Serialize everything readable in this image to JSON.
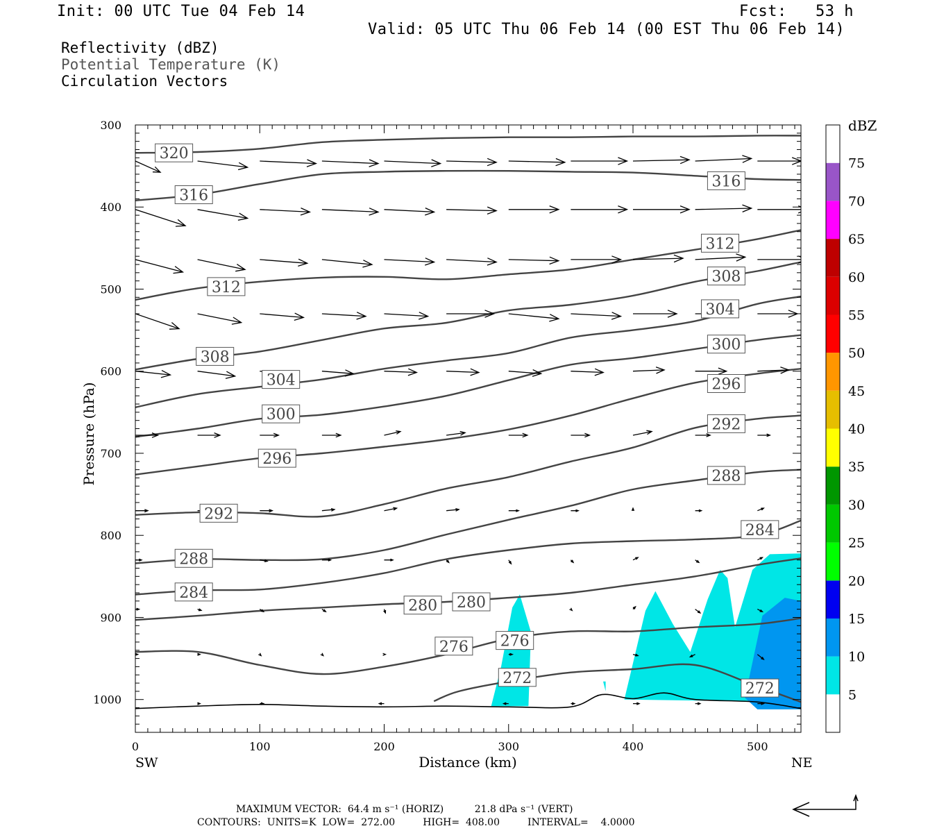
{
  "header": {
    "init": "Init: 00 UTC Tue 04 Feb 14",
    "fcst": "Fcst:   53 h",
    "valid": "Valid: 05 UTC Thu 06 Feb 14 (00 EST Thu 06 Feb 14)"
  },
  "legend": {
    "reflectivity": "Reflectivity (dBZ)",
    "theta": "Potential Temperature (K)",
    "vectors": "Circulation Vectors"
  },
  "footer": {
    "max_vector": "MAXIMUM VECTOR:  64.4 m s⁻¹ (HORIZ)          21.8 dPa s⁻¹ (VERT)",
    "contours": "CONTOURS:  UNITS=K  LOW=  272.00         HIGH=  408.00         INTERVAL=    4.0000"
  },
  "colors": {
    "contour": "#444444",
    "dbz5": "#00e6e6",
    "dbz10": "#0096f0"
  },
  "chart_data": {
    "type": "cross-section",
    "xlabel": "Distance (km)",
    "ylabel": "Pressure (hPa)",
    "x_end_labels": [
      "SW",
      "NE"
    ],
    "xlim": [
      0,
      535
    ],
    "ylim": [
      1040,
      300
    ],
    "x_ticks": [
      0,
      100,
      200,
      300,
      400,
      500
    ],
    "y_ticks": [
      300,
      400,
      500,
      600,
      700,
      800,
      900,
      1000
    ],
    "colorbar": {
      "label": "dBZ",
      "ticks": [
        5,
        10,
        15,
        20,
        25,
        30,
        35,
        40,
        45,
        50,
        55,
        60,
        65,
        70,
        75
      ],
      "colors": [
        "#ffffff",
        "#00e6e6",
        "#0096f0",
        "#0000f0",
        "#00ff00",
        "#00c800",
        "#009600",
        "#ffff00",
        "#e6be00",
        "#ff9600",
        "#ff0000",
        "#dc0000",
        "#be0000",
        "#ff00ff",
        "#9955c8",
        "#ffffff"
      ]
    },
    "contour_labels": [
      {
        "value": "320",
        "x": 31,
        "p": 334
      },
      {
        "value": "316",
        "x": 47,
        "p": 385
      },
      {
        "value": "316",
        "x": 475,
        "p": 368
      },
      {
        "value": "312",
        "x": 73,
        "p": 497
      },
      {
        "value": "312",
        "x": 470,
        "p": 444
      },
      {
        "value": "308",
        "x": 475,
        "p": 484
      },
      {
        "value": "308",
        "x": 64,
        "p": 582
      },
      {
        "value": "304",
        "x": 470,
        "p": 524
      },
      {
        "value": "304",
        "x": 117,
        "p": 610
      },
      {
        "value": "300",
        "x": 475,
        "p": 567
      },
      {
        "value": "300",
        "x": 117,
        "p": 652
      },
      {
        "value": "296",
        "x": 475,
        "p": 615
      },
      {
        "value": "296",
        "x": 114,
        "p": 706
      },
      {
        "value": "292",
        "x": 475,
        "p": 664
      },
      {
        "value": "292",
        "x": 67,
        "p": 773
      },
      {
        "value": "288",
        "x": 475,
        "p": 727
      },
      {
        "value": "288",
        "x": 47,
        "p": 828
      },
      {
        "value": "284",
        "x": 502,
        "p": 793
      },
      {
        "value": "284",
        "x": 47,
        "p": 869
      },
      {
        "value": "280",
        "x": 231,
        "p": 885
      },
      {
        "value": "280",
        "x": 270,
        "p": 881
      },
      {
        "value": "276",
        "x": 256,
        "p": 935
      },
      {
        "value": "276",
        "x": 305,
        "p": 928
      },
      {
        "value": "272",
        "x": 307,
        "p": 973
      },
      {
        "value": "272",
        "x": 502,
        "p": 986
      }
    ],
    "contours": [
      {
        "theta": 320,
        "x": [
          0,
          50,
          100,
          150,
          200,
          250,
          300,
          350,
          400,
          450,
          500,
          535
        ],
        "p": [
          334,
          333,
          329,
          321,
          318,
          316,
          315,
          315,
          314,
          314,
          313,
          313
        ]
      },
      {
        "theta": 316,
        "x": [
          0,
          50,
          100,
          150,
          200,
          250,
          300,
          350,
          400,
          450,
          500,
          535
        ],
        "p": [
          392,
          385,
          372,
          360,
          357,
          356,
          356,
          357,
          358,
          362,
          366,
          367
        ]
      },
      {
        "theta": 312,
        "x": [
          0,
          50,
          100,
          150,
          200,
          250,
          300,
          350,
          400,
          450,
          500,
          535
        ],
        "p": [
          513,
          499,
          491,
          486,
          485,
          488,
          482,
          476,
          464,
          452,
          439,
          428
        ]
      },
      {
        "theta": 308,
        "x": [
          0,
          50,
          100,
          150,
          200,
          250,
          300,
          350,
          400,
          450,
          500,
          535
        ],
        "p": [
          598,
          585,
          576,
          562,
          548,
          541,
          526,
          519,
          508,
          491,
          478,
          467
        ]
      },
      {
        "theta": 304,
        "x": [
          0,
          50,
          100,
          150,
          200,
          250,
          300,
          350,
          400,
          450,
          500,
          535
        ],
        "p": [
          644,
          628,
          619,
          610,
          597,
          587,
          578,
          559,
          550,
          539,
          518,
          509
        ]
      },
      {
        "theta": 300,
        "x": [
          0,
          50,
          100,
          150,
          200,
          250,
          300,
          350,
          400,
          450,
          500,
          535
        ],
        "p": [
          680,
          670,
          658,
          653,
          643,
          630,
          611,
          592,
          584,
          573,
          562,
          556
        ]
      },
      {
        "theta": 296,
        "x": [
          0,
          50,
          100,
          150,
          200,
          250,
          300,
          350,
          400,
          450,
          500,
          535
        ],
        "p": [
          726,
          716,
          706,
          700,
          692,
          683,
          671,
          654,
          633,
          614,
          603,
          597
        ]
      },
      {
        "theta": 292,
        "x": [
          0,
          50,
          100,
          150,
          200,
          250,
          300,
          350,
          400,
          450,
          500,
          535
        ],
        "p": [
          775,
          772,
          773,
          777,
          762,
          743,
          729,
          710,
          693,
          669,
          658,
          654
        ]
      },
      {
        "theta": 288,
        "x": [
          0,
          50,
          100,
          150,
          200,
          250,
          300,
          350,
          400,
          450,
          500,
          535
        ],
        "p": [
          834,
          829,
          830,
          829,
          818,
          799,
          781,
          764,
          744,
          733,
          723,
          720
        ]
      },
      {
        "theta": 284,
        "x": [
          0,
          50,
          100,
          150,
          200,
          250,
          300,
          350,
          400,
          450,
          500,
          535
        ],
        "p": [
          872,
          867,
          866,
          858,
          846,
          829,
          818,
          810,
          807,
          805,
          800,
          782
        ]
      },
      {
        "theta": 280,
        "x": [
          0,
          50,
          100,
          150,
          200,
          250,
          300,
          350,
          400,
          450,
          500,
          535
        ],
        "p": [
          903,
          898,
          892,
          888,
          884,
          881,
          876,
          870,
          860,
          850,
          836,
          828
        ]
      },
      {
        "theta": 276,
        "x": [
          0,
          50,
          100,
          150,
          200,
          250,
          300,
          350,
          400,
          450,
          500,
          535
        ],
        "p": [
          942,
          942,
          958,
          969,
          960,
          945,
          926,
          917,
          917,
          912,
          908,
          901
        ]
      },
      {
        "theta": 272,
        "x": [
          240,
          260,
          300,
          350,
          400,
          450,
          500,
          535
        ],
        "p": [
          1002,
          990,
          978,
          967,
          963,
          958,
          984,
          1003
        ]
      },
      {
        "theta": "surface",
        "x": [
          0,
          50,
          100,
          150,
          200,
          250,
          300,
          350,
          375,
          400,
          425,
          450,
          500,
          535
        ],
        "p": [
          1011,
          1008,
          1006,
          1008,
          1009,
          1008,
          1009,
          1009,
          994,
          999,
          992,
          1000,
          1003,
          1011
        ]
      }
    ],
    "dbz_areas": [
      {
        "dbz": 5,
        "x": [
          286,
          294,
          303,
          309,
          318,
          316,
          286
        ],
        "p": [
          1008,
          960,
          888,
          872,
          918,
          1008,
          1008
        ]
      },
      {
        "dbz": 5,
        "x": [
          376,
          378,
          378,
          376
        ],
        "p": [
          978,
          978,
          990,
          978
        ]
      },
      {
        "dbz": 5,
        "x": [
          393,
          410,
          418,
          432,
          446,
          460,
          470,
          476,
          482,
          496,
          510,
          535,
          535,
          393
        ],
        "p": [
          1000,
          892,
          868,
          908,
          942,
          878,
          842,
          852,
          912,
          842,
          823,
          822,
          1003,
          1000
        ]
      },
      {
        "dbz": 10,
        "x": [
          490,
          504,
          522,
          535,
          535,
          500,
          490
        ],
        "p": [
          998,
          898,
          876,
          880,
          1012,
          1012,
          998
        ]
      }
    ],
    "vector_rows": [
      {
        "p": 344,
        "x": [
          0,
          50,
          100,
          150,
          200,
          250,
          300,
          350,
          400,
          450,
          500
        ],
        "u": [
          20,
          40,
          45,
          45,
          45,
          40,
          45,
          45,
          45,
          45,
          35
        ],
        "v": [
          9,
          5,
          2,
          2,
          2,
          1,
          1,
          0,
          -1,
          -2,
          0
        ]
      },
      {
        "p": 403,
        "x": [
          0,
          50,
          100,
          150,
          200,
          250,
          300,
          350,
          400,
          450,
          500
        ],
        "u": [
          40,
          40,
          40,
          45,
          40,
          40,
          40,
          45,
          45,
          45,
          40
        ],
        "v": [
          13,
          7,
          2,
          2,
          2,
          1,
          0,
          0,
          0,
          -1,
          0
        ]
      },
      {
        "p": 464,
        "x": [
          0,
          50,
          100,
          150,
          200,
          250,
          300,
          350,
          400,
          450,
          500
        ],
        "u": [
          38,
          38,
          38,
          40,
          40,
          40,
          40,
          40,
          40,
          40,
          40
        ],
        "v": [
          10,
          8,
          3,
          4,
          2,
          2,
          1,
          0,
          -1,
          -2,
          0
        ]
      },
      {
        "p": 530,
        "x": [
          0,
          50,
          100,
          150,
          200,
          250,
          300,
          350,
          400,
          450,
          500
        ],
        "u": [
          35,
          35,
          35,
          35,
          35,
          38,
          40,
          40,
          35,
          30,
          32
        ],
        "v": [
          12,
          7,
          3,
          2,
          2,
          0,
          4,
          2,
          0,
          0,
          0
        ]
      },
      {
        "p": 600,
        "x": [
          0,
          50,
          100,
          150,
          200,
          250,
          300,
          350,
          400,
          450,
          500
        ],
        "u": [
          28,
          30,
          30,
          25,
          26,
          26,
          26,
          26,
          25,
          25,
          25
        ],
        "v": [
          3,
          4,
          3,
          2,
          1,
          1,
          2,
          1,
          -1,
          0,
          -1
        ]
      },
      {
        "p": 678,
        "x": [
          0,
          50,
          100,
          150,
          200,
          250,
          300,
          350,
          400,
          450,
          500
        ],
        "u": [
          18,
          18,
          15,
          15,
          13,
          15,
          15,
          15,
          15,
          12,
          10
        ],
        "v": [
          0,
          0,
          0,
          0,
          -3,
          -2,
          0,
          0,
          -3,
          0,
          0
        ]
      },
      {
        "p": 770,
        "x": [
          0,
          50,
          100,
          150,
          200,
          250,
          300,
          350,
          400,
          450,
          500
        ],
        "u": [
          10,
          10,
          10,
          10,
          10,
          10,
          8,
          6,
          0,
          5,
          5
        ],
        "v": [
          0,
          0,
          0,
          -1,
          -2,
          -1,
          0,
          0,
          -2,
          0,
          -2
        ]
      },
      {
        "p": 830,
        "x": [
          0,
          50,
          100,
          150,
          200,
          250,
          300,
          350,
          400,
          450,
          500
        ],
        "u": [
          5,
          5,
          6,
          7,
          7,
          2,
          2,
          2,
          4,
          3,
          4
        ],
        "v": [
          0,
          0,
          1,
          0,
          0,
          2,
          3,
          2,
          -2,
          2,
          -2
        ]
      },
      {
        "p": 890,
        "x": [
          0,
          50,
          100,
          150,
          200,
          350,
          400,
          450,
          500
        ],
        "u": [
          3,
          3,
          3,
          3,
          1,
          1,
          2,
          4,
          4
        ],
        "v": [
          0,
          1,
          2,
          2,
          3,
          1,
          -2,
          3,
          2
        ]
      },
      {
        "p": 945,
        "x": [
          0,
          50,
          100,
          150,
          200,
          300,
          400,
          450,
          500
        ],
        "u": [
          2,
          2,
          1,
          1,
          1,
          3,
          4,
          -4,
          5
        ],
        "v": [
          0,
          0,
          1,
          1,
          0,
          0,
          1,
          2,
          4
        ]
      },
      {
        "p": 1005,
        "x": [
          50,
          100,
          200,
          300,
          350,
          400,
          450,
          500
        ],
        "u": [
          2,
          3,
          -4,
          -4,
          3,
          5,
          4,
          5
        ],
        "v": [
          0,
          0,
          0,
          0,
          0,
          0,
          0,
          0
        ]
      }
    ]
  }
}
